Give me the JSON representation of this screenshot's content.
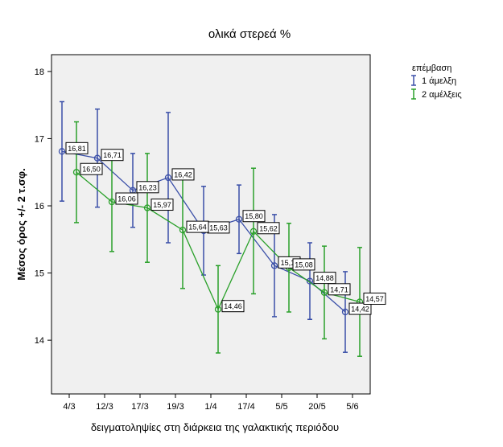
{
  "chart_data": {
    "type": "line",
    "title": "ολικά στερεά %",
    "xlabel": "δειγματοληψίες στη διάρκεια της γαλακτικής περιόδου",
    "ylabel": "Μέσος όρος +/- 2 τ.σφ.",
    "categories": [
      "4/3",
      "12/3",
      "17/3",
      "19/3",
      "1/4",
      "17/4",
      "5/5",
      "20/5",
      "5/6"
    ],
    "ylim": [
      13.2,
      18.25
    ],
    "yticks": [
      14,
      15,
      16,
      17,
      18
    ],
    "grid": false,
    "legend_position": "right",
    "legend_title": "επέμβαση",
    "series": [
      {
        "name": "1 άμελξη",
        "color": "#3a4fa8",
        "values": [
          16.81,
          16.71,
          16.23,
          16.42,
          15.63,
          15.8,
          15.11,
          14.88,
          14.42
        ],
        "labels": [
          "16,81",
          "16,71",
          "16,23",
          "16,42",
          "15,63",
          "15,80",
          "15,11",
          "14,88",
          "14,42"
        ],
        "lower": [
          16.07,
          15.98,
          15.68,
          15.45,
          14.97,
          15.29,
          14.35,
          14.31,
          13.82
        ],
        "upper": [
          17.55,
          17.44,
          16.78,
          17.39,
          16.29,
          16.31,
          15.87,
          15.45,
          15.02
        ]
      },
      {
        "name": "2 αμέλξεις",
        "color": "#2aa02a",
        "values": [
          16.5,
          16.06,
          15.97,
          15.64,
          14.46,
          15.62,
          15.08,
          14.71,
          14.57
        ],
        "labels": [
          "16,50",
          "16,06",
          "15,97",
          "15,64",
          "14,46",
          "15,62",
          "15,08",
          "14,71",
          "14,57"
        ],
        "lower": [
          15.75,
          15.32,
          15.16,
          14.77,
          13.81,
          14.69,
          14.42,
          14.02,
          13.76
        ],
        "upper": [
          17.25,
          16.8,
          16.78,
          16.51,
          15.11,
          16.56,
          15.74,
          15.4,
          15.38
        ]
      }
    ]
  }
}
